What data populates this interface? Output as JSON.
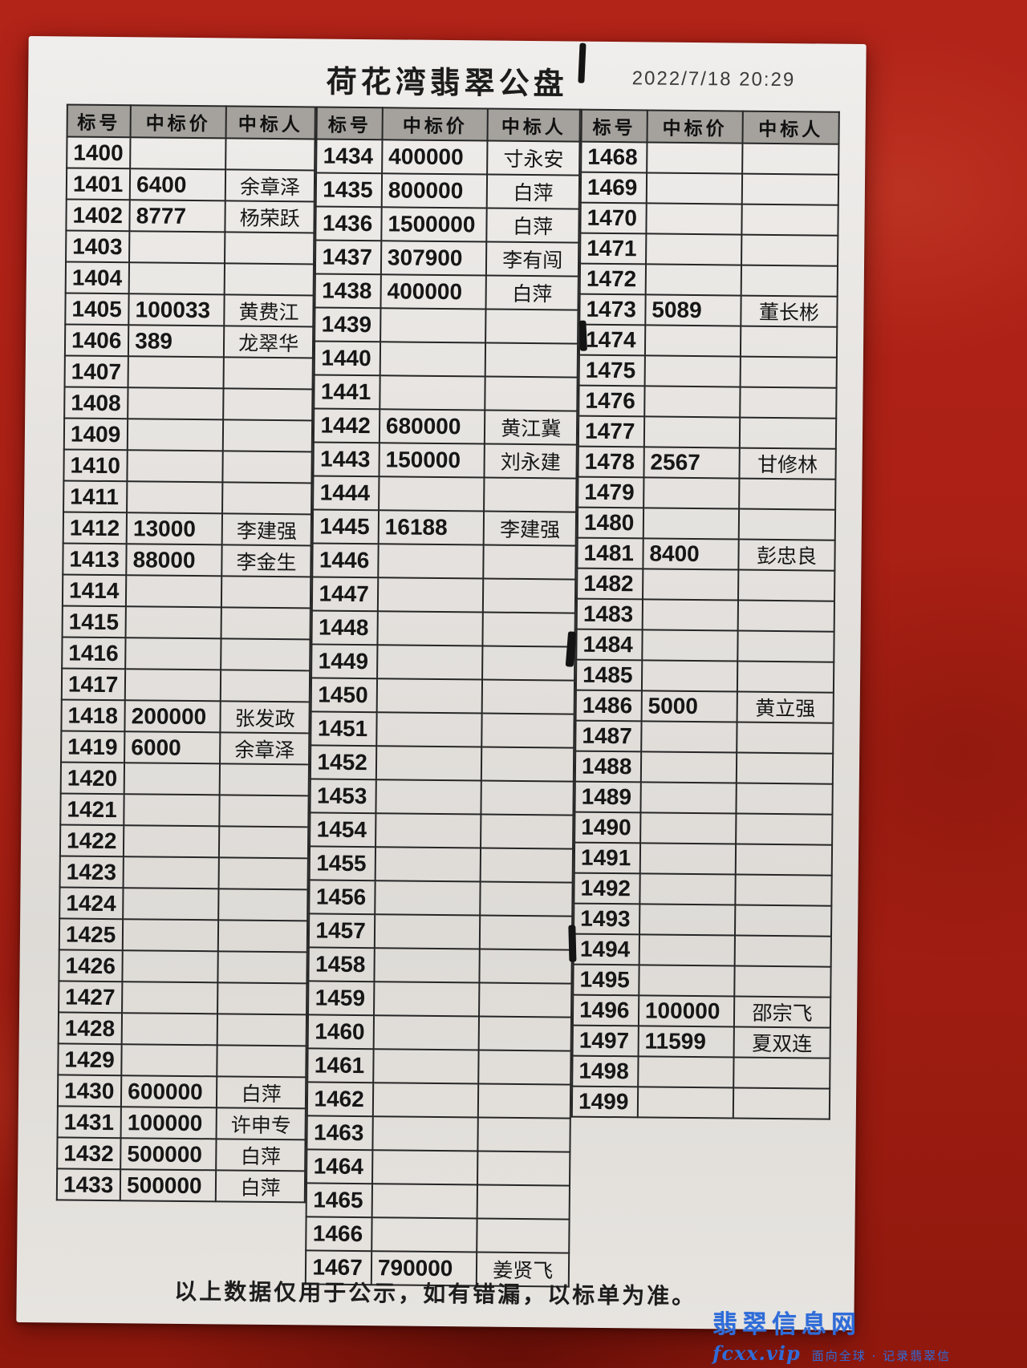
{
  "page": {
    "title": "荷花湾翡翠公盘",
    "timestamp": "2022/7/18 20:29",
    "footer": "以上数据仅用于公示，如有错漏，以标单为准。",
    "watermark": {
      "site": "翡翠信息网",
      "url": "fcxx.vip",
      "slogan": "面向全球 · 记录翡翠信"
    }
  },
  "headers": [
    "标号",
    "中标价",
    "中标人"
  ],
  "tables": [
    {
      "rows": [
        [
          "1400",
          "",
          ""
        ],
        [
          "1401",
          "6400",
          "余章泽"
        ],
        [
          "1402",
          "8777",
          "杨荣跃"
        ],
        [
          "1403",
          "",
          ""
        ],
        [
          "1404",
          "",
          ""
        ],
        [
          "1405",
          "100033",
          "黄费江"
        ],
        [
          "1406",
          "389",
          "龙翠华"
        ],
        [
          "1407",
          "",
          ""
        ],
        [
          "1408",
          "",
          ""
        ],
        [
          "1409",
          "",
          ""
        ],
        [
          "1410",
          "",
          ""
        ],
        [
          "1411",
          "",
          ""
        ],
        [
          "1412",
          "13000",
          "李建强"
        ],
        [
          "1413",
          "88000",
          "李金生"
        ],
        [
          "1414",
          "",
          ""
        ],
        [
          "1415",
          "",
          ""
        ],
        [
          "1416",
          "",
          ""
        ],
        [
          "1417",
          "",
          ""
        ],
        [
          "1418",
          "200000",
          "张发政"
        ],
        [
          "1419",
          "6000",
          "余章泽"
        ],
        [
          "1420",
          "",
          ""
        ],
        [
          "1421",
          "",
          ""
        ],
        [
          "1422",
          "",
          ""
        ],
        [
          "1423",
          "",
          ""
        ],
        [
          "1424",
          "",
          ""
        ],
        [
          "1425",
          "",
          ""
        ],
        [
          "1426",
          "",
          ""
        ],
        [
          "1427",
          "",
          ""
        ],
        [
          "1428",
          "",
          ""
        ],
        [
          "1429",
          "",
          ""
        ],
        [
          "1430",
          "600000",
          "白萍"
        ],
        [
          "1431",
          "100000",
          "许申专"
        ],
        [
          "1432",
          "500000",
          "白萍"
        ],
        [
          "1433",
          "500000",
          "白萍"
        ]
      ]
    },
    {
      "rows": [
        [
          "1434",
          "400000",
          "寸永安"
        ],
        [
          "1435",
          "800000",
          "白萍"
        ],
        [
          "1436",
          "1500000",
          "白萍"
        ],
        [
          "1437",
          "307900",
          "李有闯"
        ],
        [
          "1438",
          "400000",
          "白萍"
        ],
        [
          "1439",
          "",
          ""
        ],
        [
          "1440",
          "",
          ""
        ],
        [
          "1441",
          "",
          ""
        ],
        [
          "1442",
          "680000",
          "黄江冀"
        ],
        [
          "1443",
          "150000",
          "刘永建"
        ],
        [
          "1444",
          "",
          ""
        ],
        [
          "1445",
          "16188",
          "李建强"
        ],
        [
          "1446",
          "",
          ""
        ],
        [
          "1447",
          "",
          ""
        ],
        [
          "1448",
          "",
          ""
        ],
        [
          "1449",
          "",
          ""
        ],
        [
          "1450",
          "",
          ""
        ],
        [
          "1451",
          "",
          ""
        ],
        [
          "1452",
          "",
          ""
        ],
        [
          "1453",
          "",
          ""
        ],
        [
          "1454",
          "",
          ""
        ],
        [
          "1455",
          "",
          ""
        ],
        [
          "1456",
          "",
          ""
        ],
        [
          "1457",
          "",
          ""
        ],
        [
          "1458",
          "",
          ""
        ],
        [
          "1459",
          "",
          ""
        ],
        [
          "1460",
          "",
          ""
        ],
        [
          "1461",
          "",
          ""
        ],
        [
          "1462",
          "",
          ""
        ],
        [
          "1463",
          "",
          ""
        ],
        [
          "1464",
          "",
          ""
        ],
        [
          "1465",
          "",
          ""
        ],
        [
          "1466",
          "",
          ""
        ],
        [
          "1467",
          "790000",
          "姜贤飞"
        ]
      ]
    },
    {
      "rows": [
        [
          "1468",
          "",
          ""
        ],
        [
          "1469",
          "",
          ""
        ],
        [
          "1470",
          "",
          ""
        ],
        [
          "1471",
          "",
          ""
        ],
        [
          "1472",
          "",
          ""
        ],
        [
          "1473",
          "5089",
          "董长彬"
        ],
        [
          "1474",
          "",
          ""
        ],
        [
          "1475",
          "",
          ""
        ],
        [
          "1476",
          "",
          ""
        ],
        [
          "1477",
          "",
          ""
        ],
        [
          "1478",
          "2567",
          "甘修林"
        ],
        [
          "1479",
          "",
          ""
        ],
        [
          "1480",
          "",
          ""
        ],
        [
          "1481",
          "8400",
          "彭忠良"
        ],
        [
          "1482",
          "",
          ""
        ],
        [
          "1483",
          "",
          ""
        ],
        [
          "1484",
          "",
          ""
        ],
        [
          "1485",
          "",
          ""
        ],
        [
          "1486",
          "5000",
          "黄立强"
        ],
        [
          "1487",
          "",
          ""
        ],
        [
          "1488",
          "",
          ""
        ],
        [
          "1489",
          "",
          ""
        ],
        [
          "1490",
          "",
          ""
        ],
        [
          "1491",
          "",
          ""
        ],
        [
          "1492",
          "",
          ""
        ],
        [
          "1493",
          "",
          ""
        ],
        [
          "1494",
          "",
          ""
        ],
        [
          "1495",
          "",
          ""
        ],
        [
          "1496",
          "100000",
          "邵宗飞"
        ],
        [
          "1497",
          "11599",
          "夏双连"
        ],
        [
          "1498",
          "",
          ""
        ],
        [
          "1499",
          "",
          ""
        ]
      ]
    }
  ],
  "colors": {
    "background_red": "#a81f14",
    "paper": "#e5e2df",
    "header_gray": "#a5a29d",
    "ink": "#161616",
    "watermark_blue": "#2f6cd8"
  }
}
